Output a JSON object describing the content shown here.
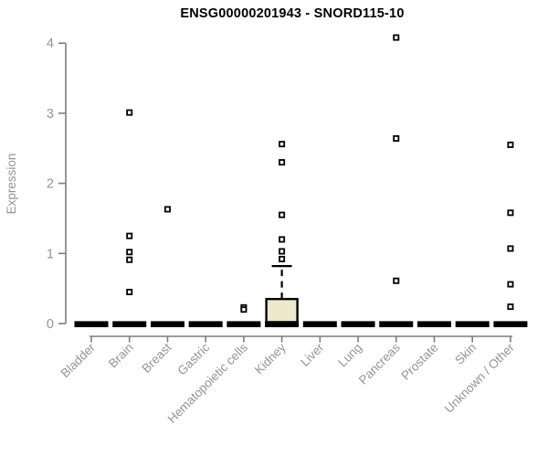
{
  "page": {
    "background": "#ffffff"
  },
  "chart_data": {
    "type": "boxplot",
    "title": "ENSG00000201943 - SNORD115-10",
    "xlabel": "",
    "ylabel": "Expression",
    "ylim": [
      0,
      4.1
    ],
    "yticks": [
      0,
      1,
      2,
      3,
      4
    ],
    "grid": false,
    "legend": "none",
    "categories": [
      "Bladder",
      "Brain",
      "Breast",
      "Gastric",
      "Hematopoietic cells",
      "Kidney",
      "Liver",
      "Lung",
      "Pancreas",
      "Prostate",
      "Skin",
      "Unknown / Other"
    ],
    "boxes": [
      {
        "category": "Bladder",
        "q1": 0,
        "median": 0,
        "q3": 0,
        "whisker_low": 0,
        "whisker_high": 0,
        "outliers": []
      },
      {
        "category": "Brain",
        "q1": 0,
        "median": 0,
        "q3": 0,
        "whisker_low": 0,
        "whisker_high": 0,
        "outliers": [
          3.01,
          1.25,
          1.02,
          0.91,
          0.45
        ]
      },
      {
        "category": "Breast",
        "q1": 0,
        "median": 0,
        "q3": 0,
        "whisker_low": 0,
        "whisker_high": 0,
        "outliers": [
          1.63
        ]
      },
      {
        "category": "Gastric",
        "q1": 0,
        "median": 0,
        "q3": 0,
        "whisker_low": 0,
        "whisker_high": 0,
        "outliers": []
      },
      {
        "category": "Hematopoietic cells",
        "q1": 0,
        "median": 0,
        "q3": 0,
        "whisker_low": 0,
        "whisker_high": 0,
        "outliers": [
          0.23,
          0.2
        ]
      },
      {
        "category": "Kidney",
        "q1": 0,
        "median": 0,
        "q3": 0.35,
        "whisker_low": 0,
        "whisker_high": 0.82,
        "outliers": [
          2.56,
          2.3,
          1.55,
          1.2,
          1.03,
          0.92
        ]
      },
      {
        "category": "Liver",
        "q1": 0,
        "median": 0,
        "q3": 0,
        "whisker_low": 0,
        "whisker_high": 0,
        "outliers": []
      },
      {
        "category": "Lung",
        "q1": 0,
        "median": 0,
        "q3": 0,
        "whisker_low": 0,
        "whisker_high": 0,
        "outliers": []
      },
      {
        "category": "Pancreas",
        "q1": 0,
        "median": 0,
        "q3": 0,
        "whisker_low": 0,
        "whisker_high": 0,
        "outliers": [
          4.08,
          2.64,
          0.61
        ]
      },
      {
        "category": "Prostate",
        "q1": 0,
        "median": 0,
        "q3": 0,
        "whisker_low": 0,
        "whisker_high": 0,
        "outliers": []
      },
      {
        "category": "Skin",
        "q1": 0,
        "median": 0,
        "q3": 0,
        "whisker_low": 0,
        "whisker_high": 0,
        "outliers": []
      },
      {
        "category": "Unknown / Other",
        "q1": 0,
        "median": 0,
        "q3": 0,
        "whisker_low": 0,
        "whisker_high": 0,
        "outliers": [
          2.55,
          1.58,
          1.07,
          0.56,
          0.24
        ]
      }
    ],
    "colors": {
      "box_fill": "#EEE8CD",
      "box_stroke": "#000000",
      "bar_fill": "#000000",
      "axis_line": "#7d7d7d",
      "tick_text": "#949494",
      "title_text": "#000000",
      "point_fill": "#ffffff",
      "point_stroke": "#000000"
    }
  }
}
